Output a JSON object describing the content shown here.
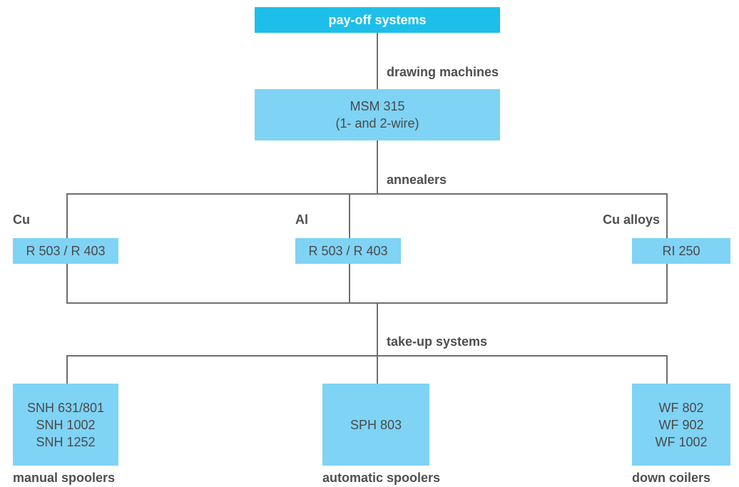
{
  "top": {
    "label": "pay-off systems"
  },
  "stages": {
    "drawing": "drawing machines",
    "annealers": "annealers",
    "takeup": "take-up systems"
  },
  "drawing_box": {
    "line1": "MSM 315",
    "line2": "(1- and 2-wire)"
  },
  "annealer_groups": [
    {
      "label": "Cu",
      "box": "R 503 / R 403"
    },
    {
      "label": "Al",
      "box": "R 503 / R 403"
    },
    {
      "label": "Cu alloys",
      "box": "RI 250"
    }
  ],
  "takeup_groups": [
    {
      "lines": [
        "SNH 631/801",
        "SNH 1002",
        "SNH 1252"
      ],
      "caption": "manual spoolers"
    },
    {
      "lines": [
        "SPH 803"
      ],
      "caption": "automatic spoolers"
    },
    {
      "lines": [
        "WF 802",
        "WF 902",
        "WF 1002"
      ],
      "caption": "down coilers"
    }
  ],
  "colors": {
    "top_box": "#1dbfea",
    "box": "#7fd3f5",
    "connector": "#6f6f6f"
  }
}
